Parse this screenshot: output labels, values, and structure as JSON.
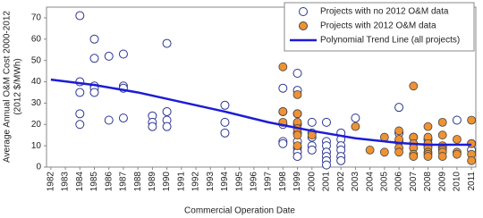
{
  "chart_data": {
    "type": "scatter",
    "x_label": "Commercial Operation Date",
    "y_label": [
      "Average Annual O&M Cost 2000-2012",
      "(2012 $/MWh)"
    ],
    "xlim": [
      1981.7,
      2011.3
    ],
    "xticks": [
      1982,
      1983,
      1984,
      1985,
      1986,
      1987,
      1988,
      1989,
      1990,
      1991,
      1992,
      1993,
      1994,
      1995,
      1996,
      1997,
      1998,
      1999,
      2000,
      2001,
      2002,
      2003,
      2004,
      2005,
      2006,
      2007,
      2008,
      2009,
      2010,
      2011
    ],
    "ylim": [
      0,
      75
    ],
    "yticks": [
      0,
      10,
      20,
      30,
      40,
      50,
      60,
      70
    ],
    "legend": "top-right",
    "series": [
      {
        "name": "Projects with no 2012 O&M data",
        "marker": "open",
        "color": "#2b3590",
        "x": [
          1984,
          1984,
          1984,
          1984,
          1984,
          1985,
          1985,
          1985,
          1985,
          1985,
          1986,
          1986,
          1987,
          1987,
          1987,
          1987,
          1989,
          1989,
          1989,
          1990,
          1990,
          1990,
          1990,
          1994,
          1994,
          1994,
          1998,
          1998,
          1998,
          1998,
          1998,
          1999,
          1999,
          1999,
          1999,
          1999,
          1999,
          1999,
          1999,
          1999,
          2000,
          2000,
          2000,
          2000,
          2000,
          2001,
          2001,
          2001,
          2001,
          2001,
          2001,
          2001,
          2002,
          2002,
          2002,
          2002,
          2002,
          2002,
          2003,
          2006,
          2006,
          2006,
          2007,
          2008,
          2008,
          2009,
          2010,
          2011,
          2011
        ],
        "values": [
          71,
          40,
          35,
          25,
          20,
          60,
          51,
          38,
          37,
          35,
          52,
          22,
          53,
          38,
          37,
          23,
          24,
          21,
          19,
          58,
          26,
          22,
          19,
          29,
          21,
          16,
          37,
          26,
          20,
          12,
          11,
          44,
          36,
          25,
          20,
          16,
          12,
          9,
          7,
          5,
          21,
          16,
          14,
          10,
          8,
          21,
          12,
          10,
          7,
          5,
          3,
          1,
          16,
          13,
          10,
          8,
          5,
          3,
          23,
          28,
          16,
          12,
          14,
          13,
          10,
          9,
          22,
          11,
          8
        ]
      },
      {
        "name": "Projects with 2012 O&M data",
        "marker": "filled",
        "color": "#ef9233",
        "x": [
          1998,
          1998,
          1998,
          1999,
          1999,
          1999,
          1999,
          1999,
          1999,
          2000,
          2003,
          2004,
          2005,
          2005,
          2006,
          2006,
          2006,
          2006,
          2007,
          2007,
          2007,
          2007,
          2007,
          2007,
          2008,
          2008,
          2008,
          2008,
          2008,
          2008,
          2008,
          2009,
          2009,
          2009,
          2009,
          2009,
          2009,
          2009,
          2010,
          2010,
          2010,
          2011,
          2011,
          2011,
          2011
        ],
        "values": [
          47,
          26,
          21,
          34,
          25,
          21,
          18,
          15,
          10,
          15,
          19,
          8,
          14,
          7,
          17,
          13,
          9,
          7,
          38,
          14,
          11,
          9,
          6,
          5,
          19,
          14,
          11,
          9,
          7,
          6,
          5,
          21,
          15,
          10,
          9,
          8,
          7,
          5,
          13,
          7,
          6,
          22,
          11,
          6,
          3
        ]
      },
      {
        "name": "Polynomial Trend Line (all projects)",
        "marker": "line",
        "color": "#1c1cd6",
        "x": [
          1982,
          1985,
          1988,
          1991,
          1994,
          1997,
          2000,
          2003,
          2006,
          2008,
          2011
        ],
        "values": [
          41,
          38.5,
          35,
          30.5,
          26,
          21,
          17,
          13.5,
          11.3,
          10.5,
          10.5
        ]
      }
    ]
  }
}
